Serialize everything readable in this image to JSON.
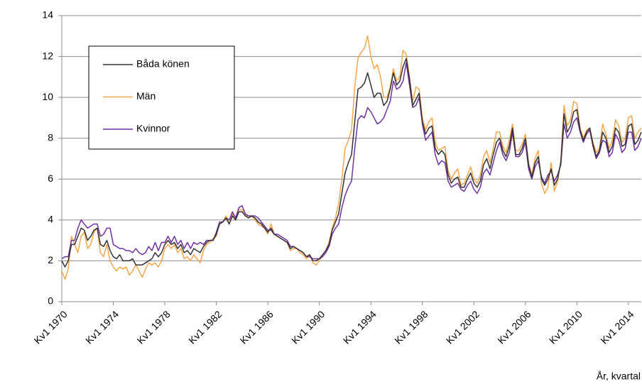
{
  "chart_data": {
    "type": "line",
    "x_label": "År, kvartal",
    "categories": [
      "Kv1 1970",
      null,
      null,
      null,
      null,
      null,
      null,
      null,
      null,
      null,
      null,
      null,
      null,
      null,
      null,
      null,
      "Kv1 1974",
      null,
      null,
      null,
      null,
      null,
      null,
      null,
      null,
      null,
      null,
      null,
      null,
      null,
      null,
      null,
      "Kv1 1978",
      null,
      null,
      null,
      null,
      null,
      null,
      null,
      null,
      null,
      null,
      null,
      null,
      null,
      null,
      null,
      "Kv1 1982",
      null,
      null,
      null,
      null,
      null,
      null,
      null,
      null,
      null,
      null,
      null,
      null,
      null,
      null,
      null,
      "Kv1 1986",
      null,
      null,
      null,
      null,
      null,
      null,
      null,
      null,
      null,
      null,
      null,
      null,
      null,
      null,
      null,
      "Kv1 1990",
      null,
      null,
      null,
      null,
      null,
      null,
      null,
      null,
      null,
      null,
      null,
      null,
      null,
      null,
      null,
      "Kv1 1994",
      null,
      null,
      null,
      null,
      null,
      null,
      null,
      null,
      null,
      null,
      null,
      null,
      null,
      null,
      null,
      "Kv1 1998",
      null,
      null,
      null,
      null,
      null,
      null,
      null,
      null,
      null,
      null,
      null,
      null,
      null,
      null,
      null,
      "Kv1 2002",
      null,
      null,
      null,
      null,
      null,
      null,
      null,
      null,
      null,
      null,
      null,
      null,
      null,
      null,
      null,
      "Kv1 2006",
      null,
      null,
      null,
      null,
      null,
      null,
      null,
      null,
      null,
      null,
      null,
      null,
      null,
      null,
      null,
      "Kv1 2010",
      null,
      null,
      null,
      null,
      null,
      null,
      null,
      null,
      null,
      null,
      null,
      null,
      null,
      null,
      null,
      "Kv1 2014",
      null,
      null,
      null,
      null
    ],
    "series": [
      {
        "name": "Båda könen",
        "color": "#333333",
        "values": [
          2.0,
          1.7,
          2.0,
          2.8,
          2.8,
          3.2,
          3.6,
          3.5,
          3.0,
          3.2,
          3.5,
          3.6,
          2.8,
          2.7,
          3.0,
          2.5,
          2.2,
          2.1,
          2.3,
          2.0,
          2.0,
          2.0,
          2.1,
          1.8,
          1.8,
          1.8,
          1.9,
          2.0,
          2.1,
          2.4,
          2.2,
          2.4,
          2.8,
          3.0,
          2.8,
          2.9,
          2.6,
          2.8,
          2.4,
          2.5,
          2.3,
          2.6,
          2.5,
          2.4,
          2.7,
          2.9,
          3.0,
          3.0,
          3.3,
          3.8,
          3.9,
          4.1,
          3.8,
          4.2,
          4.0,
          4.4,
          4.4,
          4.2,
          4.1,
          4.2,
          4.1,
          3.9,
          3.8,
          3.6,
          3.4,
          3.6,
          3.3,
          3.2,
          3.1,
          3.0,
          2.9,
          2.6,
          2.7,
          2.6,
          2.5,
          2.4,
          2.2,
          2.3,
          2.0,
          2.0,
          2.1,
          2.3,
          2.5,
          2.8,
          3.5,
          3.9,
          4.3,
          5.3,
          6.3,
          6.8,
          7.2,
          8.8,
          10.4,
          10.5,
          10.7,
          11.2,
          10.6,
          10.0,
          10.2,
          10.2,
          9.6,
          9.8,
          10.4,
          11.2,
          10.6,
          10.8,
          11.5,
          11.9,
          10.9,
          9.6,
          9.9,
          10.2,
          8.8,
          8.2,
          8.5,
          8.6,
          7.5,
          7.2,
          7.4,
          7.2,
          6.2,
          5.8,
          6.0,
          6.1,
          5.6,
          5.6,
          6.0,
          6.3,
          5.8,
          5.6,
          5.9,
          6.7,
          7.0,
          6.5,
          7.2,
          7.8,
          8.0,
          7.4,
          7.1,
          7.6,
          8.5,
          7.2,
          7.2,
          7.5,
          8.0,
          6.7,
          6.1,
          6.8,
          7.1,
          6.0,
          5.7,
          6.0,
          6.5,
          5.7,
          6.0,
          6.8,
          9.2,
          8.3,
          8.6,
          9.3,
          9.4,
          8.4,
          7.9,
          8.3,
          8.5,
          7.7,
          7.1,
          7.4,
          8.3,
          8.0,
          7.3,
          7.6,
          8.5,
          8.3,
          7.6,
          7.7,
          8.6,
          8.7,
          7.7,
          7.9,
          8.3
        ]
      },
      {
        "name": "Män",
        "color": "#f5a54a",
        "values": [
          1.5,
          1.1,
          1.6,
          3.2,
          2.8,
          2.4,
          3.2,
          3.4,
          2.6,
          2.8,
          3.4,
          3.6,
          2.4,
          2.2,
          2.8,
          2.0,
          1.7,
          1.5,
          1.7,
          1.6,
          1.7,
          1.3,
          1.5,
          1.8,
          1.5,
          1.2,
          1.6,
          1.9,
          1.8,
          1.9,
          1.7,
          2.0,
          2.6,
          2.8,
          2.6,
          2.8,
          2.4,
          2.6,
          2.1,
          2.2,
          2.0,
          2.3,
          2.1,
          1.9,
          2.5,
          2.8,
          2.9,
          3.1,
          3.2,
          3.9,
          3.9,
          4.2,
          3.8,
          4.3,
          4.0,
          4.5,
          4.5,
          4.3,
          4.1,
          4.2,
          4.0,
          3.8,
          3.7,
          3.6,
          3.3,
          3.8,
          3.3,
          3.2,
          3.1,
          3.0,
          2.9,
          2.5,
          2.6,
          2.6,
          2.4,
          2.3,
          2.1,
          2.3,
          1.9,
          1.8,
          2.0,
          2.3,
          2.5,
          2.9,
          3.6,
          4.1,
          4.8,
          6.0,
          7.5,
          7.9,
          8.4,
          10.5,
          11.9,
          12.2,
          12.4,
          13.0,
          12.0,
          11.4,
          11.6,
          11.0,
          10.0,
          10.0,
          10.5,
          11.4,
          10.8,
          11.0,
          12.3,
          12.1,
          11.0,
          9.8,
          10.5,
          10.4,
          9.0,
          8.4,
          8.8,
          9.0,
          7.8,
          7.4,
          7.5,
          7.6,
          6.4,
          6.0,
          6.3,
          6.5,
          5.7,
          5.8,
          6.2,
          6.6,
          6.0,
          5.8,
          6.2,
          7.1,
          7.4,
          6.8,
          7.5,
          8.3,
          8.3,
          7.6,
          7.3,
          7.9,
          8.7,
          7.4,
          7.4,
          7.7,
          8.2,
          6.8,
          6.2,
          7.0,
          7.4,
          5.8,
          5.3,
          5.6,
          6.8,
          5.4,
          5.9,
          6.9,
          9.6,
          8.6,
          8.9,
          9.8,
          9.7,
          8.5,
          8.0,
          8.4,
          8.5,
          7.8,
          7.3,
          7.5,
          8.7,
          8.2,
          7.5,
          7.9,
          8.9,
          8.6,
          7.8,
          8.0,
          9.0,
          9.1,
          8.0,
          8.3,
          8.5
        ]
      },
      {
        "name": "Kvinnor",
        "color": "#7030a0",
        "values": [
          2.1,
          2.2,
          2.2,
          3.0,
          3.0,
          3.6,
          4.0,
          3.8,
          3.6,
          3.7,
          3.8,
          3.8,
          3.2,
          3.3,
          3.6,
          3.6,
          2.8,
          2.7,
          2.6,
          2.6,
          2.5,
          2.5,
          2.4,
          2.6,
          2.4,
          2.3,
          2.4,
          2.7,
          2.5,
          2.9,
          2.5,
          2.9,
          2.9,
          3.2,
          2.9,
          3.2,
          2.8,
          3.0,
          2.6,
          2.9,
          2.6,
          2.9,
          2.8,
          2.9,
          2.8,
          3.0,
          3.0,
          3.0,
          3.4,
          3.9,
          3.9,
          4.1,
          4.0,
          4.4,
          4.1,
          4.6,
          4.7,
          4.3,
          4.2,
          4.2,
          4.2,
          4.1,
          3.9,
          3.7,
          3.5,
          3.5,
          3.3,
          3.3,
          3.2,
          3.1,
          3.0,
          2.7,
          2.7,
          2.6,
          2.5,
          2.4,
          2.2,
          2.2,
          2.1,
          2.1,
          2.1,
          2.2,
          2.4,
          2.7,
          3.3,
          3.6,
          3.8,
          4.6,
          5.2,
          5.6,
          5.9,
          7.5,
          8.9,
          9.1,
          9.0,
          9.5,
          9.3,
          9.0,
          8.7,
          8.8,
          9.0,
          9.4,
          9.8,
          10.8,
          10.4,
          10.5,
          10.8,
          11.7,
          10.6,
          9.5,
          9.6,
          10.0,
          8.7,
          7.9,
          8.1,
          8.3,
          7.2,
          6.7,
          6.9,
          6.8,
          5.9,
          5.6,
          5.7,
          5.8,
          5.5,
          5.4,
          5.7,
          5.9,
          5.5,
          5.3,
          5.6,
          6.3,
          6.5,
          6.2,
          6.8,
          7.4,
          7.8,
          7.2,
          6.9,
          7.3,
          8.3,
          7.1,
          7.1,
          7.3,
          7.8,
          6.5,
          6.0,
          6.6,
          6.9,
          6.1,
          5.8,
          6.2,
          6.4,
          5.9,
          6.2,
          6.7,
          8.7,
          8.0,
          8.3,
          8.8,
          9.0,
          8.3,
          7.8,
          8.2,
          8.4,
          7.6,
          7.0,
          7.3,
          7.9,
          7.8,
          7.1,
          7.3,
          8.2,
          7.9,
          7.3,
          7.5,
          8.3,
          8.3,
          7.4,
          7.6,
          8.0
        ]
      }
    ],
    "ylim": [
      0,
      14
    ],
    "yticks": [
      0,
      2,
      4,
      6,
      8,
      10,
      12,
      14
    ],
    "grid": true,
    "legend": "upper left"
  }
}
